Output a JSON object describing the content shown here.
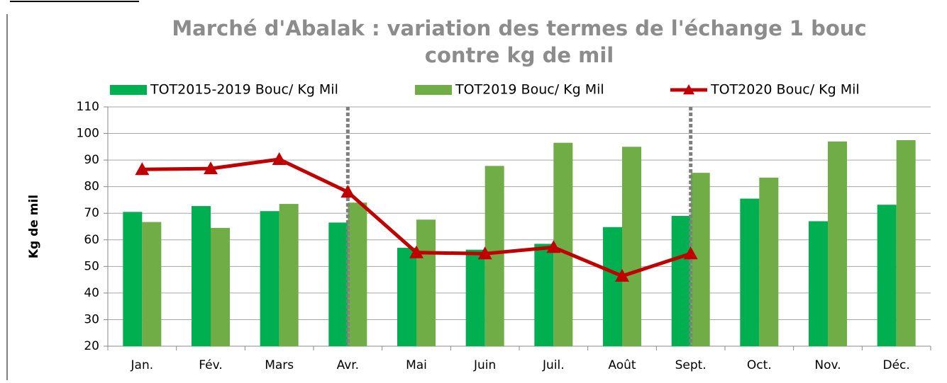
{
  "chart_data": {
    "type": "bar-line",
    "title": [
      "Marché d'Abalak : variation des termes de l'échange 1 bouc",
      "contre kg de mil"
    ],
    "ylabel": "Kg de mil",
    "categories": [
      "Jan.",
      "Fév.",
      "Mars",
      "Avr.",
      "Mai",
      "Juin",
      "Juil.",
      "Août",
      "Sept.",
      "Oct.",
      "Nov.",
      "Déc."
    ],
    "series": [
      {
        "name": "TOT2015-2019 Bouc/ Kg Mil",
        "type": "bar",
        "color": "#00b050",
        "values": [
          70.5,
          72.7,
          70.8,
          66.5,
          57,
          56.3,
          58.5,
          64.8,
          69,
          75.5,
          67,
          73.2
        ]
      },
      {
        "name": "TOT2019 Bouc/ Kg Mil",
        "type": "bar",
        "color": "#70ad47",
        "values": [
          66.7,
          64.5,
          73.5,
          74,
          67.6,
          87.8,
          96.5,
          95,
          85.2,
          83.4,
          97,
          97.5
        ]
      },
      {
        "name": "TOT2020 Bouc/ Kg Mil",
        "type": "line",
        "color": "#c00000",
        "values": [
          86.5,
          86.8,
          90.3,
          78,
          55.2,
          54.8,
          57.2,
          46.4,
          54.8,
          null,
          null,
          null
        ]
      }
    ],
    "ylim": [
      20,
      110
    ],
    "yticks": [
      20,
      30,
      40,
      50,
      60,
      70,
      80,
      90,
      100,
      110
    ],
    "grid": true,
    "legend": "top"
  }
}
